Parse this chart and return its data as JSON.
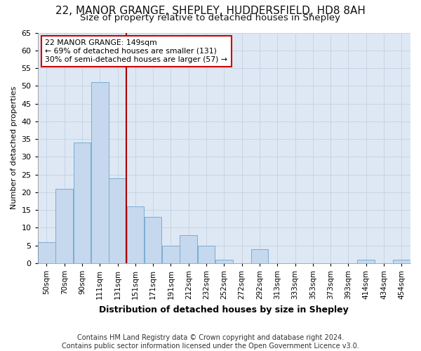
{
  "title1": "22, MANOR GRANGE, SHEPLEY, HUDDERSFIELD, HD8 8AH",
  "title2": "Size of property relative to detached houses in Shepley",
  "xlabel": "Distribution of detached houses by size in Shepley",
  "ylabel": "Number of detached properties",
  "footer1": "Contains HM Land Registry data © Crown copyright and database right 2024.",
  "footer2": "Contains public sector information licensed under the Open Government Licence v3.0.",
  "bin_labels": [
    "50sqm",
    "70sqm",
    "90sqm",
    "111sqm",
    "131sqm",
    "151sqm",
    "171sqm",
    "191sqm",
    "212sqm",
    "232sqm",
    "252sqm",
    "272sqm",
    "292sqm",
    "313sqm",
    "333sqm",
    "353sqm",
    "373sqm",
    "393sqm",
    "414sqm",
    "434sqm",
    "454sqm"
  ],
  "bar_values": [
    6,
    21,
    34,
    51,
    24,
    16,
    13,
    5,
    8,
    5,
    1,
    0,
    4,
    0,
    0,
    0,
    0,
    0,
    1,
    0,
    1
  ],
  "bar_color": "#c5d8ee",
  "bar_edge_color": "#7aadd4",
  "vline_x": 5.0,
  "vline_color": "#aa0000",
  "annotation_line1": "22 MANOR GRANGE: 149sqm",
  "annotation_line2": "← 69% of detached houses are smaller (131)",
  "annotation_line3": "30% of semi-detached houses are larger (57) →",
  "annotation_box_color": "#ffffff",
  "annotation_box_edge_color": "#cc0000",
  "ylim": [
    0,
    65
  ],
  "yticks": [
    0,
    5,
    10,
    15,
    20,
    25,
    30,
    35,
    40,
    45,
    50,
    55,
    60,
    65
  ],
  "grid_color": "#c8d4e4",
  "bg_color": "#dde8f4",
  "fig_bg_color": "#ffffff",
  "title1_fontsize": 11,
  "title2_fontsize": 9.5,
  "ylabel_fontsize": 8,
  "xlabel_fontsize": 9,
  "footer_fontsize": 7
}
